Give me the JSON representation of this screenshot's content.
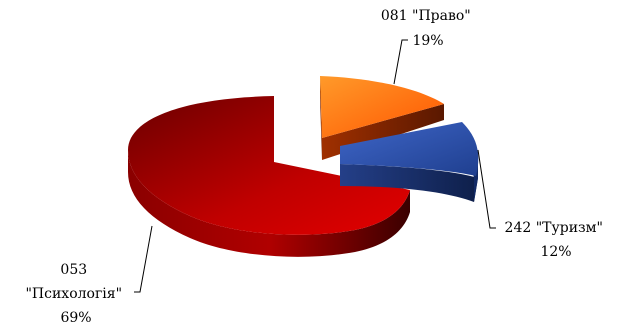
{
  "chart_data": {
    "type": "pie",
    "title": "",
    "slices": [
      {
        "label": "081 \"Право\"",
        "value": 19,
        "percent": "19%",
        "color": "#ff6a00"
      },
      {
        "label": "242 \"Туризм\"",
        "value": 12,
        "percent": "12%",
        "color": "#2e4fa8"
      },
      {
        "label": "053 \"Психологія\"",
        "value": 69,
        "percent": "69%",
        "color": "#c40000"
      }
    ],
    "exploded": true,
    "three_d": true
  },
  "labels": {
    "pravo": {
      "line1": "081 \"Право\"",
      "line2": "19%"
    },
    "turyzm": {
      "line1": "242 \"Туризм\"",
      "line2": "12%"
    },
    "psykholohiia": {
      "line1": "053",
      "line2": "\"Психологія\"",
      "line3": "69%"
    }
  }
}
